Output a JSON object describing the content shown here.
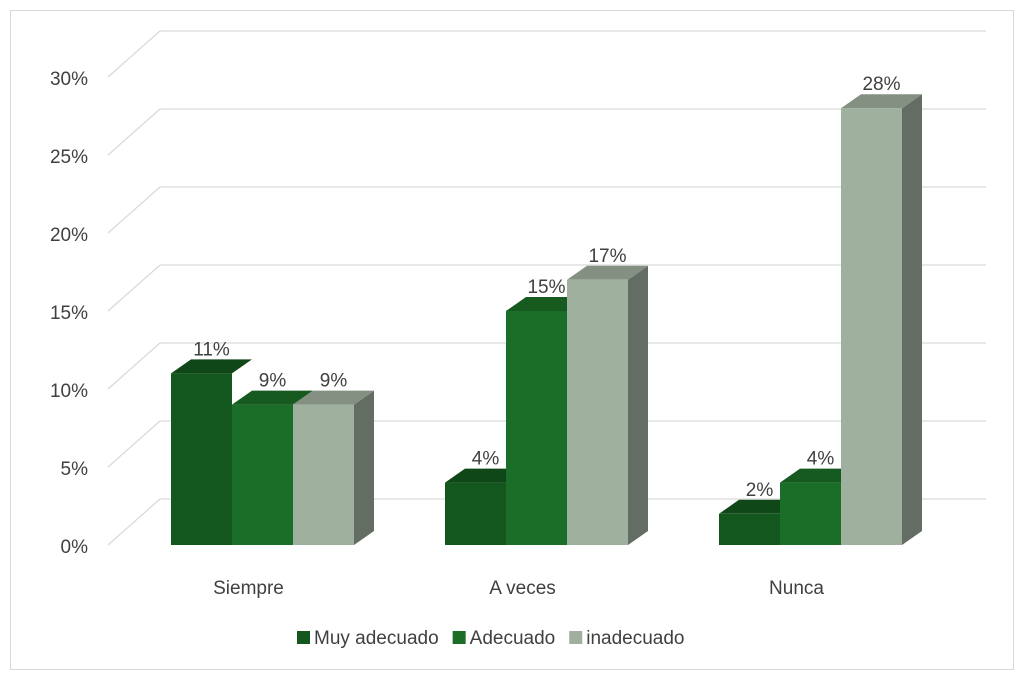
{
  "chart_data": {
    "type": "bar",
    "style": "3d-clustered-column",
    "categories": [
      "Siempre",
      "A veces",
      "Nunca"
    ],
    "series": [
      {
        "name": "Muy adecuado",
        "values": [
          11,
          4,
          2
        ],
        "labels": [
          "11%",
          "4%",
          "2%"
        ],
        "color": "#13561e"
      },
      {
        "name": "Adecuado",
        "values": [
          9,
          15,
          4
        ],
        "labels": [
          "9%",
          "15%",
          "4%"
        ],
        "color": "#1b6e27"
      },
      {
        "name": "inadecuado",
        "values": [
          9,
          17,
          28
        ],
        "labels": [
          "9%",
          "17%",
          "28%"
        ],
        "color": "#a0b09f"
      }
    ],
    "yticks": [
      "0%",
      "5%",
      "10%",
      "15%",
      "20%",
      "25%",
      "30%"
    ],
    "ylim": [
      0,
      30
    ],
    "grid": true,
    "legend_position": "bottom",
    "title": "",
    "xlabel": "",
    "ylabel": ""
  }
}
